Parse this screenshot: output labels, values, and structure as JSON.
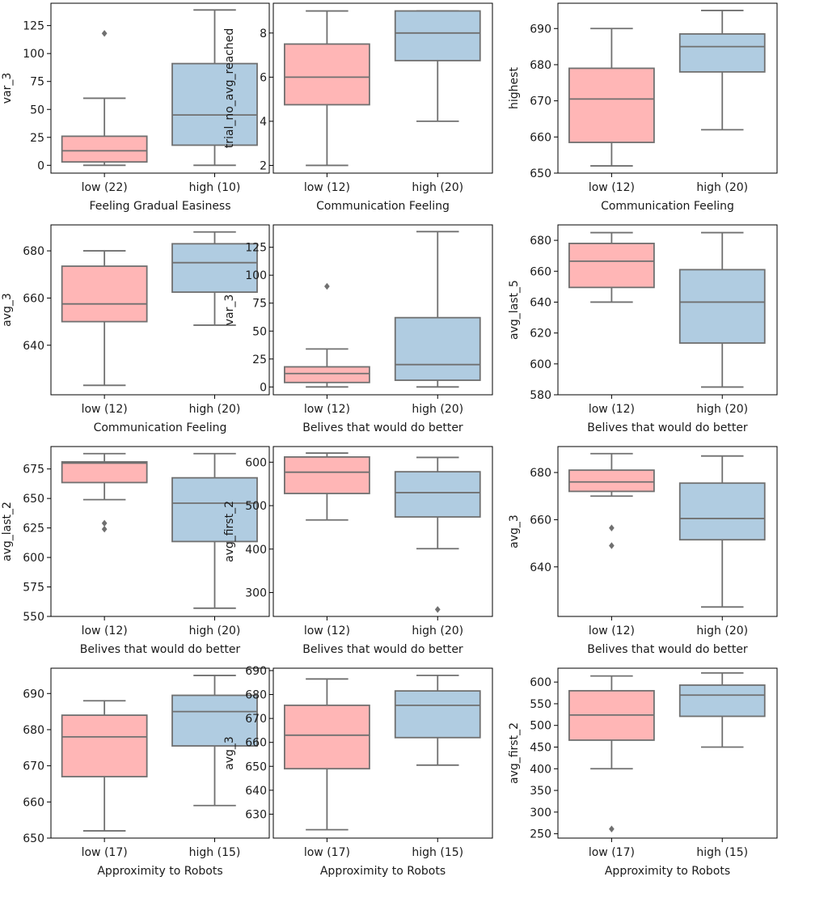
{
  "colors": {
    "low": "#ffb6b6",
    "high": "#b0cce1",
    "stroke": "#707070",
    "frame": "#000000"
  },
  "chart_data": [
    {
      "type": "box",
      "ylabel": "var_3",
      "xlabel": "Feeling Gradual Easiness",
      "categories": [
        "low (22)",
        "high (10)"
      ],
      "yticks": [
        0,
        25,
        50,
        75,
        100,
        125
      ],
      "ylim": [
        -7,
        145
      ],
      "boxes": [
        {
          "whislo": 0,
          "q1": 3,
          "med": 13,
          "q3": 26,
          "whishi": 60,
          "fliers": [
            118
          ]
        },
        {
          "whislo": 0,
          "q1": 18,
          "med": 45,
          "q3": 91,
          "whishi": 139,
          "fliers": []
        }
      ]
    },
    {
      "type": "box",
      "ylabel": "trial_no_avg_reached",
      "xlabel": "Communication Feeling",
      "categories": [
        "low (12)",
        "high (20)"
      ],
      "yticks": [
        2,
        4,
        6,
        8
      ],
      "ylim": [
        1.65,
        9.35
      ],
      "boxes": [
        {
          "whislo": 2,
          "q1": 4.75,
          "med": 6,
          "q3": 7.5,
          "whishi": 9,
          "fliers": []
        },
        {
          "whislo": 4,
          "q1": 6.75,
          "med": 8,
          "q3": 9,
          "whishi": 9,
          "fliers": []
        }
      ]
    },
    {
      "type": "box",
      "ylabel": "highest",
      "xlabel": "Communication Feeling",
      "categories": [
        "low (12)",
        "high (20)"
      ],
      "yticks": [
        650,
        660,
        670,
        680,
        690
      ],
      "ylim": [
        650,
        697
      ],
      "boxes": [
        {
          "whislo": 652,
          "q1": 658.5,
          "med": 670.5,
          "q3": 679,
          "whishi": 690,
          "fliers": []
        },
        {
          "whislo": 662,
          "q1": 678,
          "med": 685,
          "q3": 688.5,
          "whishi": 695,
          "fliers": []
        }
      ]
    },
    {
      "type": "box",
      "ylabel": "avg_3",
      "xlabel": "Communication Feeling",
      "categories": [
        "low (12)",
        "high (20)"
      ],
      "yticks": [
        640,
        660,
        680
      ],
      "ylim": [
        619,
        691
      ],
      "boxes": [
        {
          "whislo": 623,
          "q1": 650,
          "med": 657.5,
          "q3": 673.5,
          "whishi": 680,
          "fliers": []
        },
        {
          "whislo": 648.5,
          "q1": 662.5,
          "med": 675,
          "q3": 683,
          "whishi": 688,
          "fliers": []
        }
      ]
    },
    {
      "type": "box",
      "ylabel": "var_3",
      "xlabel": "Belives that would do better",
      "categories": [
        "low (12)",
        "high (20)"
      ],
      "yticks": [
        0,
        25,
        50,
        75,
        100,
        125
      ],
      "ylim": [
        -7,
        145
      ],
      "boxes": [
        {
          "whislo": 0,
          "q1": 4,
          "med": 12,
          "q3": 18,
          "whishi": 34,
          "fliers": [
            90
          ]
        },
        {
          "whislo": 0,
          "q1": 6,
          "med": 20,
          "q3": 62,
          "whishi": 139,
          "fliers": []
        }
      ]
    },
    {
      "type": "box",
      "ylabel": "avg_last_5",
      "xlabel": "Belives that would do better",
      "categories": [
        "low (12)",
        "high (20)"
      ],
      "yticks": [
        580,
        600,
        620,
        640,
        660,
        680
      ],
      "ylim": [
        580,
        690
      ],
      "boxes": [
        {
          "whislo": 640,
          "q1": 649.5,
          "med": 666.5,
          "q3": 678,
          "whishi": 685,
          "fliers": []
        },
        {
          "whislo": 585,
          "q1": 613.5,
          "med": 640,
          "q3": 661,
          "whishi": 685,
          "fliers": []
        }
      ]
    },
    {
      "type": "box",
      "ylabel": "avg_last_2",
      "xlabel": "Belives that would do better",
      "categories": [
        "low (12)",
        "high (20)"
      ],
      "yticks": [
        550,
        575,
        600,
        625,
        650,
        675
      ],
      "ylim": [
        550,
        694
      ],
      "boxes": [
        {
          "whislo": 649,
          "q1": 663.5,
          "med": 680,
          "q3": 681,
          "whishi": 688,
          "fliers": [
            629,
            624
          ]
        },
        {
          "whislo": 557,
          "q1": 613.5,
          "med": 646,
          "q3": 667.5,
          "whishi": 688,
          "fliers": []
        }
      ]
    },
    {
      "type": "box",
      "ylabel": "avg_first_2",
      "xlabel": "Belives that would do better",
      "categories": [
        "low (12)",
        "high (20)"
      ],
      "yticks": [
        300,
        400,
        500,
        600
      ],
      "ylim": [
        245,
        636
      ],
      "boxes": [
        {
          "whislo": 467,
          "q1": 528,
          "med": 577,
          "q3": 612,
          "whishi": 621,
          "fliers": []
        },
        {
          "whislo": 401,
          "q1": 474,
          "med": 530,
          "q3": 578,
          "whishi": 611,
          "fliers": [
            261
          ]
        }
      ]
    },
    {
      "type": "box",
      "ylabel": "avg_3",
      "xlabel": "Belives that would do better",
      "categories": [
        "low (12)",
        "high (20)"
      ],
      "yticks": [
        640,
        660,
        680
      ],
      "ylim": [
        619,
        691
      ],
      "boxes": [
        {
          "whislo": 670,
          "q1": 672,
          "med": 676,
          "q3": 681,
          "whishi": 688,
          "fliers": [
            656.5,
            649
          ]
        },
        {
          "whislo": 623,
          "q1": 651.5,
          "med": 660.5,
          "q3": 675.5,
          "whishi": 687,
          "fliers": []
        }
      ]
    },
    {
      "type": "box",
      "ylabel": "",
      "xlabel": "Approximity to Robots",
      "categories": [
        "low (17)",
        "high (15)"
      ],
      "yticks": [
        650,
        660,
        670,
        680,
        690
      ],
      "ylim": [
        650,
        697
      ],
      "boxes": [
        {
          "whislo": 652,
          "q1": 667,
          "med": 678,
          "q3": 684,
          "whishi": 688,
          "fliers": []
        },
        {
          "whislo": 659,
          "q1": 675.5,
          "med": 685,
          "q3": 689.5,
          "whishi": 695,
          "fliers": []
        }
      ]
    },
    {
      "type": "box",
      "ylabel": "avg_3",
      "xlabel": "Approximity to Robots",
      "categories": [
        "low (17)",
        "high (15)"
      ],
      "yticks": [
        630,
        640,
        650,
        660,
        670,
        680,
        690
      ],
      "ylim": [
        620,
        691
      ],
      "boxes": [
        {
          "whislo": 623.5,
          "q1": 649,
          "med": 663,
          "q3": 675.5,
          "whishi": 686.5,
          "fliers": []
        },
        {
          "whislo": 650.5,
          "q1": 662,
          "med": 675.5,
          "q3": 681.5,
          "whishi": 688,
          "fliers": []
        }
      ]
    },
    {
      "type": "box",
      "ylabel": "avg_first_2",
      "xlabel": "Approximity to Robots",
      "categories": [
        "low (17)",
        "high (15)"
      ],
      "yticks": [
        250,
        300,
        350,
        400,
        450,
        500,
        550,
        600
      ],
      "ylim": [
        240,
        632
      ],
      "boxes": [
        {
          "whislo": 400,
          "q1": 466,
          "med": 524,
          "q3": 580,
          "whishi": 614,
          "fliers": [
            261
          ]
        },
        {
          "whislo": 450,
          "q1": 521,
          "med": 570,
          "q3": 593,
          "whishi": 621,
          "fliers": []
        }
      ]
    }
  ]
}
